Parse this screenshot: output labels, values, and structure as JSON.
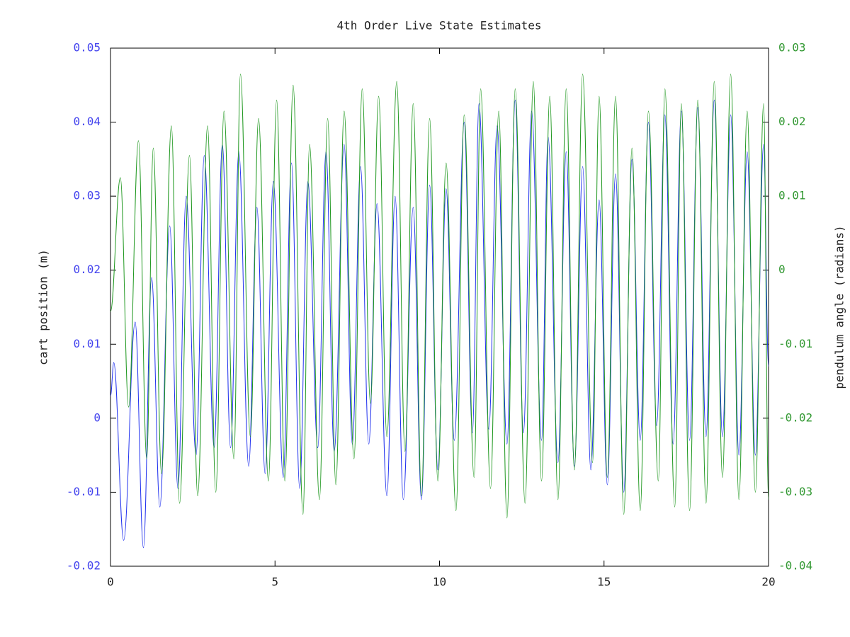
{
  "chart_data": {
    "type": "line",
    "title": "4th Order Live State Estimates",
    "y_label": "cart position (m)",
    "y2_label": "pendulum angle (radians)",
    "xlim": [
      0,
      20
    ],
    "xticks": [
      0,
      5,
      10,
      15,
      20
    ],
    "ylim": [
      -0.02,
      0.05
    ],
    "yticks": [
      -0.02,
      -0.01,
      0,
      0.01,
      0.02,
      0.03,
      0.04,
      0.05
    ],
    "y2lim": [
      -0.04,
      0.03
    ],
    "y2ticks": [
      -0.04,
      -0.03,
      -0.02,
      -0.01,
      0,
      0.01,
      0.02,
      0.03
    ],
    "grid": false,
    "series": [
      {
        "color": "#2233ee",
        "x": [
          0,
          0.1,
          0.4,
          0.75,
          1.0,
          1.25,
          1.5,
          1.8,
          2.05,
          2.3,
          2.6,
          2.85,
          3.15,
          3.4,
          3.65,
          3.9,
          4.2,
          4.45,
          4.7,
          4.95,
          5.25,
          5.5,
          5.75,
          6.0,
          6.3,
          6.55,
          6.8,
          7.1,
          7.35,
          7.6,
          7.85,
          8.1,
          8.4,
          8.65,
          8.9,
          9.2,
          9.45,
          9.7,
          9.95,
          10.2,
          10.45,
          10.75,
          11.0,
          11.2,
          11.5,
          11.75,
          12.05,
          12.3,
          12.55,
          12.8,
          13.1,
          13.3,
          13.6,
          13.85,
          14.1,
          14.35,
          14.6,
          14.85,
          15.1,
          15.35,
          15.6,
          15.85,
          16.1,
          16.35,
          16.6,
          16.85,
          17.1,
          17.35,
          17.6,
          17.85,
          18.1,
          18.35,
          18.6,
          18.85,
          19.1,
          19.35,
          19.6,
          19.85,
          20
        ],
        "values": [
          0.003,
          0.0075,
          -0.0165,
          0.013,
          -0.0175,
          0.019,
          -0.012,
          0.026,
          -0.0095,
          0.03,
          -0.005,
          0.0355,
          -0.004,
          0.037,
          -0.004,
          0.036,
          -0.0065,
          0.0285,
          -0.0075,
          0.032,
          -0.008,
          0.0345,
          -0.0095,
          0.032,
          -0.004,
          0.036,
          -0.0045,
          0.037,
          -0.0035,
          0.034,
          -0.0035,
          0.029,
          -0.0105,
          0.03,
          -0.011,
          0.0285,
          -0.011,
          0.0315,
          -0.007,
          0.031,
          -0.003,
          0.04,
          -0.002,
          0.0425,
          -0.0015,
          0.0395,
          -0.0035,
          0.043,
          -0.002,
          0.0415,
          -0.003,
          0.038,
          -0.006,
          0.036,
          -0.0065,
          0.034,
          -0.007,
          0.0295,
          -0.009,
          0.033,
          -0.01,
          0.035,
          -0.003,
          0.04,
          -0.001,
          0.041,
          -0.0035,
          0.0415,
          -0.003,
          0.042,
          -0.0025,
          0.043,
          -0.0025,
          0.041,
          -0.005,
          0.036,
          -0.005,
          0.037,
          0.007
        ]
      },
      {
        "color": "#229922",
        "axis": "y2",
        "x": [
          0,
          0.3,
          0.55,
          0.85,
          1.1,
          1.3,
          1.55,
          1.85,
          2.1,
          2.4,
          2.65,
          2.95,
          3.2,
          3.45,
          3.75,
          3.95,
          4.25,
          4.5,
          4.8,
          5.05,
          5.3,
          5.55,
          5.85,
          6.05,
          6.35,
          6.6,
          6.85,
          7.1,
          7.4,
          7.65,
          7.9,
          8.15,
          8.4,
          8.7,
          8.95,
          9.2,
          9.45,
          9.7,
          9.95,
          10.2,
          10.5,
          10.75,
          11.05,
          11.25,
          11.55,
          11.8,
          12.05,
          12.3,
          12.6,
          12.85,
          13.1,
          13.35,
          13.6,
          13.85,
          14.1,
          14.35,
          14.65,
          14.85,
          15.1,
          15.35,
          15.6,
          15.85,
          16.1,
          16.35,
          16.65,
          16.85,
          17.15,
          17.35,
          17.6,
          17.85,
          18.1,
          18.35,
          18.6,
          18.85,
          19.1,
          19.35,
          19.6,
          19.85,
          20
        ],
        "values": [
          -0.0056,
          0.0125,
          -0.0185,
          0.0175,
          -0.0255,
          0.0165,
          -0.0275,
          0.0195,
          -0.0315,
          0.0155,
          -0.0305,
          0.0195,
          -0.03,
          0.0215,
          -0.0255,
          0.0265,
          -0.0225,
          0.0205,
          -0.0285,
          0.023,
          -0.0285,
          0.025,
          -0.033,
          0.017,
          -0.031,
          0.0205,
          -0.029,
          0.0215,
          -0.0255,
          0.0245,
          -0.018,
          0.0235,
          -0.0225,
          0.0255,
          -0.0245,
          0.0225,
          -0.0305,
          0.0205,
          -0.0285,
          0.0145,
          -0.0325,
          0.021,
          -0.028,
          0.0245,
          -0.0295,
          0.0215,
          -0.0335,
          0.0245,
          -0.0315,
          0.0255,
          -0.0285,
          0.0235,
          -0.031,
          0.0245,
          -0.027,
          0.0265,
          -0.026,
          0.0235,
          -0.028,
          0.0235,
          -0.033,
          0.0165,
          -0.0325,
          0.0215,
          -0.0285,
          0.0245,
          -0.032,
          0.0225,
          -0.0325,
          0.023,
          -0.0315,
          0.0255,
          -0.028,
          0.0265,
          -0.031,
          0.0215,
          -0.03,
          0.0225,
          -0.031
        ]
      }
    ]
  }
}
